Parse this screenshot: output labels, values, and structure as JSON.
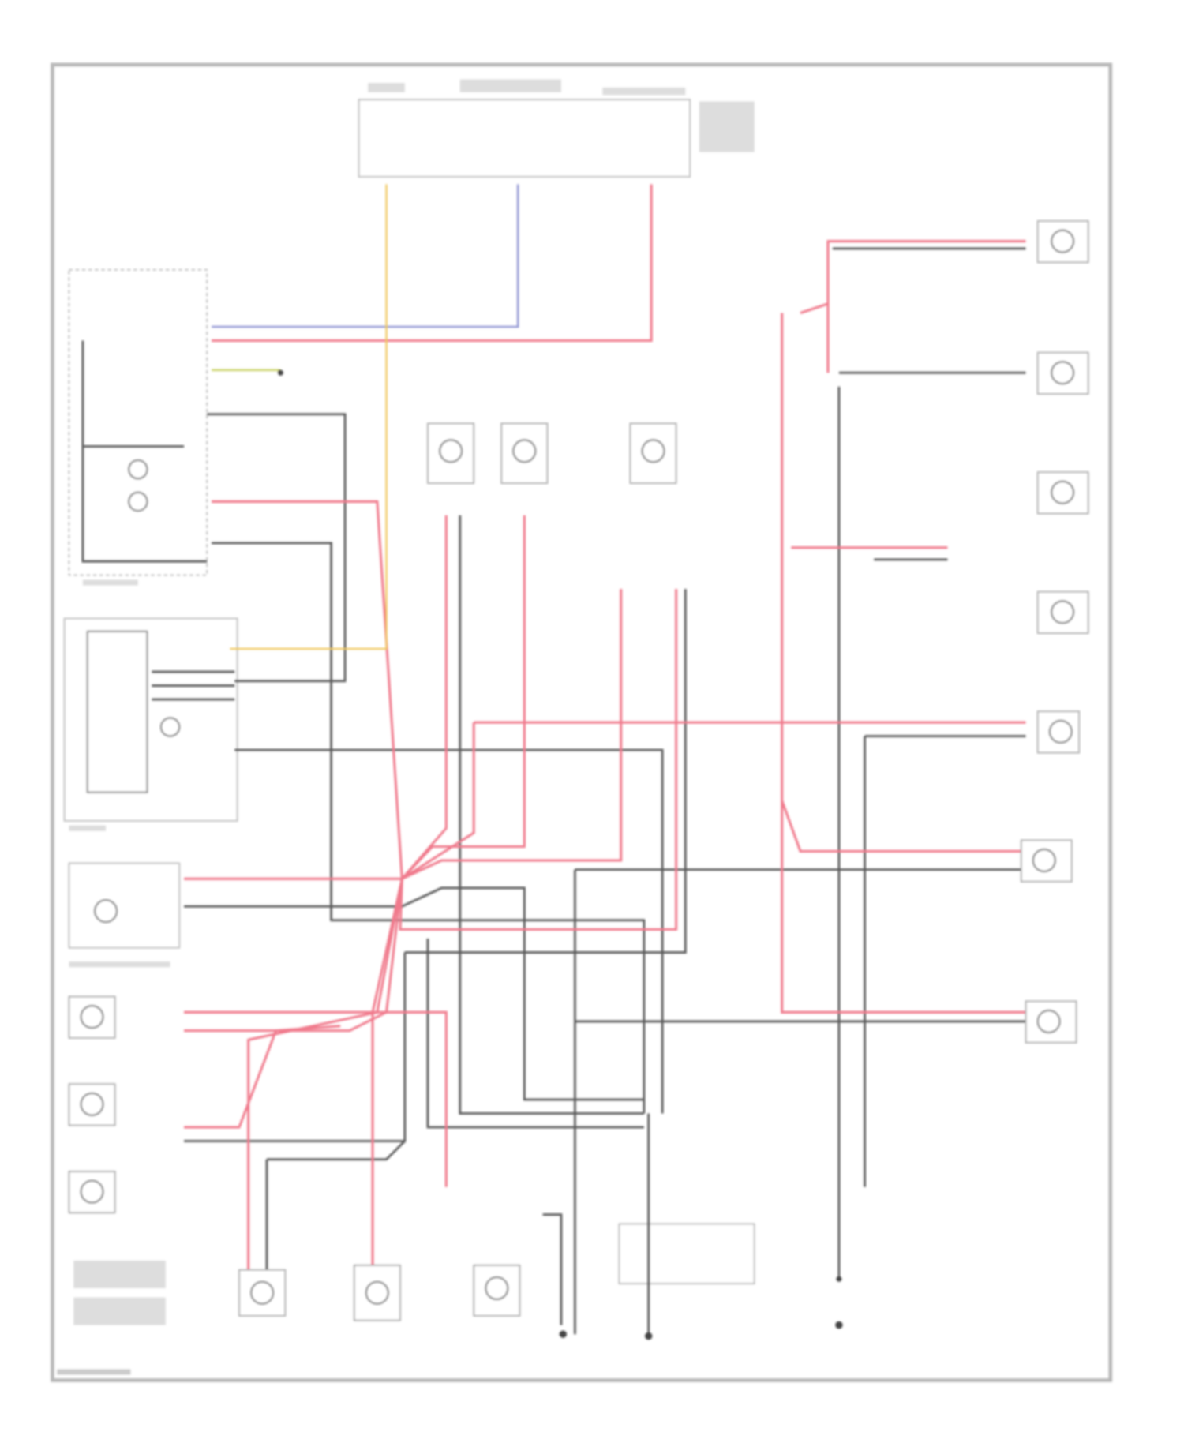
{
  "diagram": {
    "wire_colors": {
      "red": "#f07a8c",
      "pink": "#f4a3b0",
      "gray": "#5a5a5a",
      "blue": "#8a8fd0",
      "yellow": "#f0c860",
      "frame": "#b8b8b8"
    },
    "components": [
      {
        "icon": "fuse-box-icon"
      },
      {
        "icon": "headlight-switch-icon"
      },
      {
        "icon": "control-module-icon"
      },
      {
        "icon": "instrument-cluster-icon"
      },
      {
        "icon": "sensor-icon"
      },
      {
        "icon": "ground-icon"
      }
    ]
  }
}
